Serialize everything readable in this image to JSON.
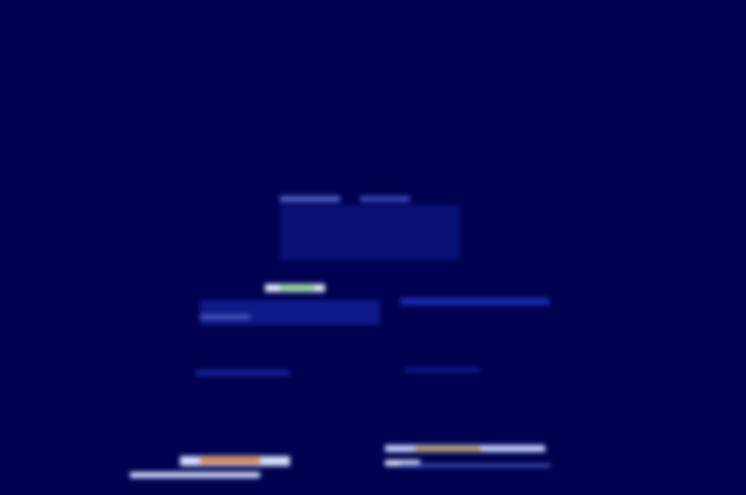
{
  "chart_data": {
    "type": "heatmap",
    "xlim": [
      0,
      746
    ],
    "ylim": [
      0,
      495
    ],
    "tick_labels": false,
    "grid": false,
    "cells": [
      {
        "x": [
          0,
          746
        ],
        "y": [
          0,
          495
        ],
        "value": 0
      },
      {
        "x": [
          280,
          460
        ],
        "y": [
          235,
          290
        ],
        "value": 0.08
      },
      {
        "x": [
          280,
          340
        ],
        "y": [
          293,
          299
        ],
        "value": 0.3
      },
      {
        "x": [
          360,
          410
        ],
        "y": [
          293,
          299
        ],
        "value": 0.25
      },
      {
        "x": [
          200,
          380
        ],
        "y": [
          170,
          195
        ],
        "value": 0.12
      },
      {
        "x": [
          200,
          250
        ],
        "y": [
          176,
          180
        ],
        "value": 0.3
      },
      {
        "x": [
          400,
          550
        ],
        "y": [
          190,
          197
        ],
        "value": 0.2
      },
      {
        "x": [
          195,
          290
        ],
        "y": [
          119,
          125
        ],
        "value": 0.15
      },
      {
        "x": [
          405,
          480
        ],
        "y": [
          123,
          127
        ],
        "value": 0.15
      },
      {
        "x": [
          265,
          325
        ],
        "y": [
          203,
          211
        ],
        "value": 0.6
      },
      {
        "x": [
          280,
          315
        ],
        "y": [
          205,
          209
        ],
        "value": 0.85
      },
      {
        "x": [
          180,
          290
        ],
        "y": [
          29,
          39
        ],
        "value": 0.55
      },
      {
        "x": [
          200,
          260
        ],
        "y": [
          32,
          37
        ],
        "value": 1.0
      },
      {
        "x": [
          130,
          260
        ],
        "y": [
          17,
          23
        ],
        "value": 0.55
      },
      {
        "x": [
          385,
          545
        ],
        "y": [
          43,
          50
        ],
        "value": 0.5
      },
      {
        "x": [
          415,
          480
        ],
        "y": [
          44,
          48
        ],
        "value": 0.95
      },
      {
        "x": [
          385,
          420
        ],
        "y": [
          29,
          35
        ],
        "value": 0.6
      },
      {
        "x": [
          400,
          550
        ],
        "y": [
          28,
          31
        ],
        "value": 0.3
      }
    ]
  }
}
